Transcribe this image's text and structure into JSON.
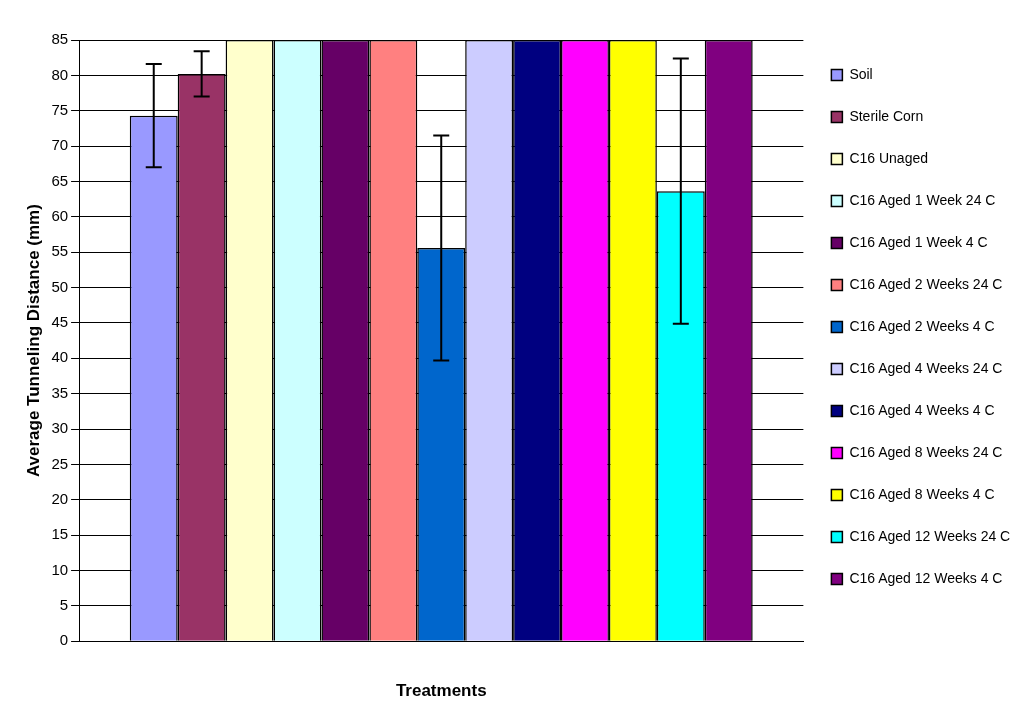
{
  "chart_data": {
    "type": "bar",
    "xlabel": "Treatments",
    "ylabel": "Average Tunneling Distance (mm)",
    "categories": [
      null
    ],
    "series": [
      {
        "name": "Soil",
        "color": "#9999ff",
        "values": [
          74.3
        ],
        "errors": [
          [
            67,
            81.6
          ]
        ]
      },
      {
        "name": "Sterile Corn",
        "color": "#993366",
        "values": [
          80.2
        ],
        "errors": [
          [
            77,
            83.4
          ]
        ]
      },
      {
        "name": "C16 Unaged",
        "color": "#ffffcc",
        "values": [
          85
        ]
      },
      {
        "name": "C16 Aged 1 Week 24 C",
        "color": "#ccffff",
        "values": [
          85
        ]
      },
      {
        "name": "C16 Aged 1 Week 4 C",
        "color": "#660066",
        "values": [
          85
        ]
      },
      {
        "name": "C16 Aged 2 Weeks 24 C",
        "color": "#ff8080",
        "values": [
          85
        ]
      },
      {
        "name": "C16 Aged 2 Weeks 4 C",
        "color": "#0066cc",
        "values": [
          55.6
        ],
        "errors": [
          [
            39.7,
            71.5
          ]
        ]
      },
      {
        "name": "C16 Aged 4 Weeks 24 C",
        "color": "#ccccff",
        "values": [
          85
        ]
      },
      {
        "name": "C16 Aged 4 Weeks 4 C",
        "color": "#000080",
        "values": [
          85
        ]
      },
      {
        "name": "C16 Aged 8 Weeks 24 C",
        "color": "#ff00ff",
        "values": [
          85
        ]
      },
      {
        "name": "C16 Aged 8 Weeks 4 C",
        "color": "#ffff00",
        "values": [
          85
        ]
      },
      {
        "name": "C16 Aged 12 Weeks 24 C",
        "color": "#00ffff",
        "values": [
          63.6
        ],
        "errors": [
          [
            44.9,
            82.4
          ]
        ]
      },
      {
        "name": "C16 Aged 12 Weeks 4 C",
        "color": "#800080",
        "values": [
          85
        ]
      }
    ],
    "ylim": [
      0,
      85
    ],
    "yticks": [
      0,
      5,
      10,
      15,
      20,
      25,
      30,
      35,
      40,
      45,
      50,
      55,
      60,
      65,
      70,
      75,
      80,
      85
    ],
    "grid": "y",
    "legend": "right"
  }
}
